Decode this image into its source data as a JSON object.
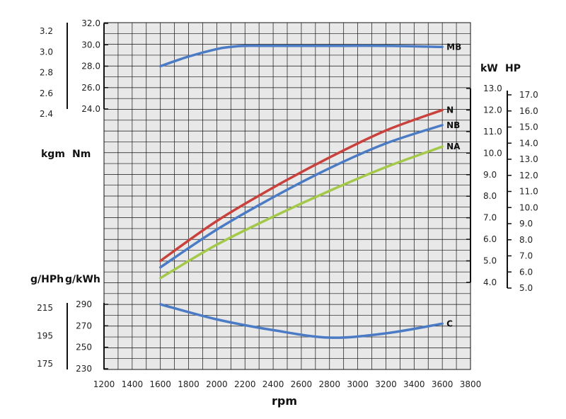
{
  "chart_data": {
    "type": "line",
    "title": "",
    "xlabel": "rpm",
    "x_ticks": [
      1200,
      1400,
      1600,
      1800,
      2000,
      2200,
      2400,
      2600,
      2800,
      3000,
      3200,
      3400,
      3600,
      3800
    ],
    "xlim": [
      1200,
      3800
    ],
    "axes": {
      "torque": {
        "labels": [
          "kgm",
          "Nm"
        ],
        "nm_range": [
          24.0,
          32.0
        ],
        "nm_ticks": [
          "24.0",
          "26.0",
          "28.0",
          "30.0",
          "32.0"
        ],
        "kgm_range": [
          2.4,
          3.2
        ],
        "kgm_ticks": [
          "2.4",
          "2.6",
          "2.8",
          "3.0",
          "3.2"
        ]
      },
      "power": {
        "labels": [
          "kW",
          "HP"
        ],
        "kw_range": [
          4.0,
          13.0
        ],
        "kw_ticks": [
          "4.0",
          "5.0",
          "6.0",
          "7.0",
          "8.0",
          "9.0",
          "10.0",
          "11.0",
          "12.0",
          "13.0"
        ],
        "hp_range": [
          5.0,
          17.0
        ],
        "hp_ticks": [
          "5.0",
          "6.0",
          "7.0",
          "8.0",
          "9.0",
          "10.0",
          "11.0",
          "12.0",
          "13.0",
          "14.0",
          "15.0",
          "16.0",
          "17.0"
        ]
      },
      "consumption": {
        "labels": [
          "g/HPh",
          "g/kWh"
        ],
        "gkwh_range": [
          230,
          290
        ],
        "gkwh_ticks": [
          "230",
          "250",
          "270",
          "290"
        ],
        "ghph_range": [
          170,
          215
        ],
        "ghph_ticks": [
          "175",
          "195",
          "215"
        ]
      }
    },
    "series": [
      {
        "name": "MB",
        "axis": "torque",
        "unit": "Nm",
        "color": "#4a7bc4",
        "x": [
          1600,
          1800,
          2000,
          2100,
          2200,
          2400,
          2800,
          3200,
          3600
        ],
        "y": [
          28.0,
          28.9,
          29.6,
          29.8,
          29.9,
          29.9,
          29.9,
          29.9,
          29.8
        ]
      },
      {
        "name": "N",
        "axis": "power",
        "unit": "kW",
        "color": "#c9413c",
        "x": [
          1600,
          2000,
          2400,
          2800,
          3200,
          3600
        ],
        "y": [
          5.0,
          6.85,
          8.4,
          9.8,
          11.05,
          12.0
        ]
      },
      {
        "name": "NB",
        "axis": "power",
        "unit": "kW",
        "color": "#4a7bc4",
        "x": [
          1600,
          2000,
          2400,
          2800,
          3200,
          3600
        ],
        "y": [
          4.7,
          6.45,
          7.95,
          9.3,
          10.45,
          11.3
        ]
      },
      {
        "name": "NA",
        "axis": "power",
        "unit": "kW",
        "color": "#a4c84a",
        "x": [
          1600,
          2000,
          2400,
          2800,
          3200,
          3600
        ],
        "y": [
          4.2,
          5.75,
          7.05,
          8.25,
          9.35,
          10.3
        ]
      },
      {
        "name": "C",
        "axis": "consumption",
        "unit": "g/kWh",
        "color": "#4a7bc4",
        "x": [
          1600,
          2000,
          2400,
          2800,
          3200,
          3600
        ],
        "y": [
          290,
          276,
          266,
          259,
          263,
          272
        ]
      }
    ]
  }
}
